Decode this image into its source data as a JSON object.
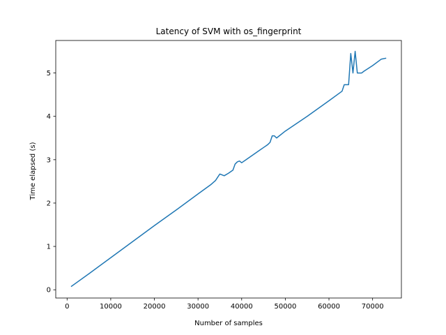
{
  "chart_data": {
    "type": "line",
    "title": "Latency of SVM with os_fingerprint",
    "xlabel": "Number of samples",
    "ylabel": "Time elapsed (s)",
    "xlim": [
      -2600,
      76600
    ],
    "ylim": [
      -0.19,
      5.75
    ],
    "xticks": [
      0,
      10000,
      20000,
      30000,
      40000,
      50000,
      60000,
      70000
    ],
    "yticks": [
      0,
      1,
      2,
      3,
      4,
      5
    ],
    "grid": false,
    "legend": "none",
    "series_color": "#1f77b4",
    "series": [
      {
        "x": [
          1000,
          5000,
          10000,
          15000,
          20000,
          25000,
          30000,
          33000,
          34000,
          35000,
          36000,
          37000,
          38000,
          38500,
          39000,
          39500,
          40000,
          41000,
          42000,
          43000,
          44000,
          45000,
          46000,
          46500,
          47000,
          47500,
          48000,
          50000,
          55000,
          60000,
          63000,
          63500,
          64500,
          65000,
          65500,
          66000,
          66500,
          67000,
          67500,
          68000,
          70000,
          72000,
          73000
        ],
        "y": [
          0.08,
          0.37,
          0.74,
          1.11,
          1.48,
          1.84,
          2.21,
          2.43,
          2.52,
          2.67,
          2.63,
          2.69,
          2.76,
          2.9,
          2.95,
          2.97,
          2.93,
          3.0,
          3.07,
          3.14,
          3.21,
          3.28,
          3.35,
          3.4,
          3.55,
          3.55,
          3.5,
          3.66,
          4.0,
          4.36,
          4.58,
          4.73,
          4.73,
          5.45,
          5.0,
          5.5,
          5.0,
          5.0,
          5.0,
          5.04,
          5.17,
          5.32,
          5.34
        ]
      }
    ]
  }
}
